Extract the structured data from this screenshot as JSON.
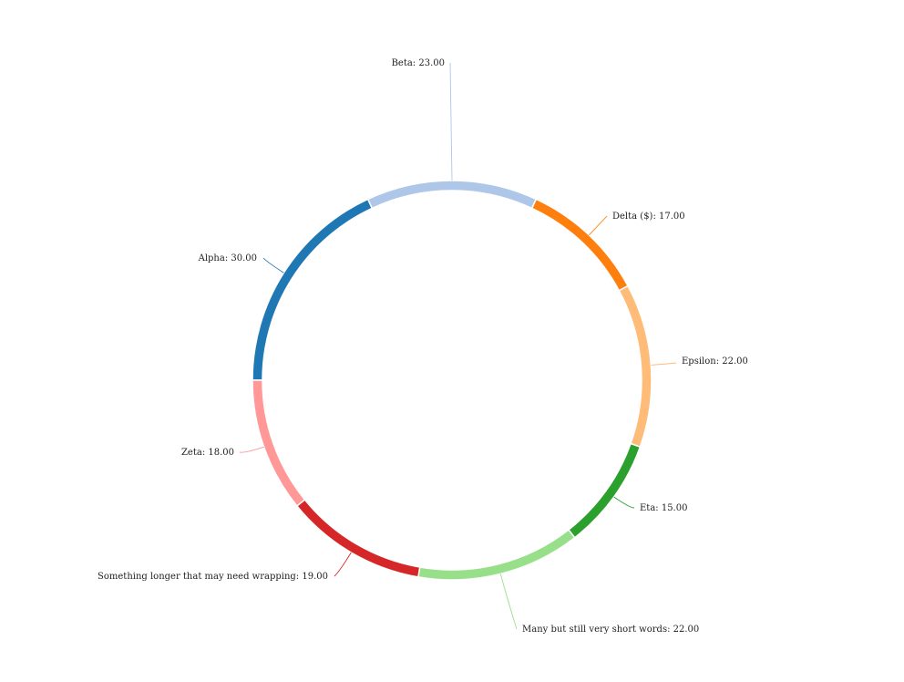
{
  "chart_data": {
    "type": "pie",
    "variant": "donut",
    "title": "",
    "slices": [
      {
        "label": "Alpha",
        "value": 30.0,
        "display": "Alpha: 30.00",
        "color": "#1f77b4"
      },
      {
        "label": "Beta",
        "value": 23.0,
        "display": "Beta: 23.00",
        "color": "#aec7e8"
      },
      {
        "label": "Delta ($)",
        "value": 17.0,
        "display": "Delta ($): 17.00",
        "color": "#ff7f0e"
      },
      {
        "label": "Epsilon",
        "value": 22.0,
        "display": "Epsilon: 22.00",
        "color": "#ffbb78"
      },
      {
        "label": "Eta",
        "value": 15.0,
        "display": "Eta: 15.00",
        "color": "#2ca02c"
      },
      {
        "label": "Many but still very short words",
        "value": 22.0,
        "display": "Many but still very short words: 22.00",
        "color": "#98df8a"
      },
      {
        "label": "Something longer that may need wrapping",
        "value": 19.0,
        "display": "Something longer that may need wrapping: 19.00",
        "color": "#d62728"
      },
      {
        "label": "Zeta",
        "value": 18.0,
        "display": "Zeta: 18.00",
        "color": "#ff9896"
      }
    ],
    "legend": "none"
  }
}
